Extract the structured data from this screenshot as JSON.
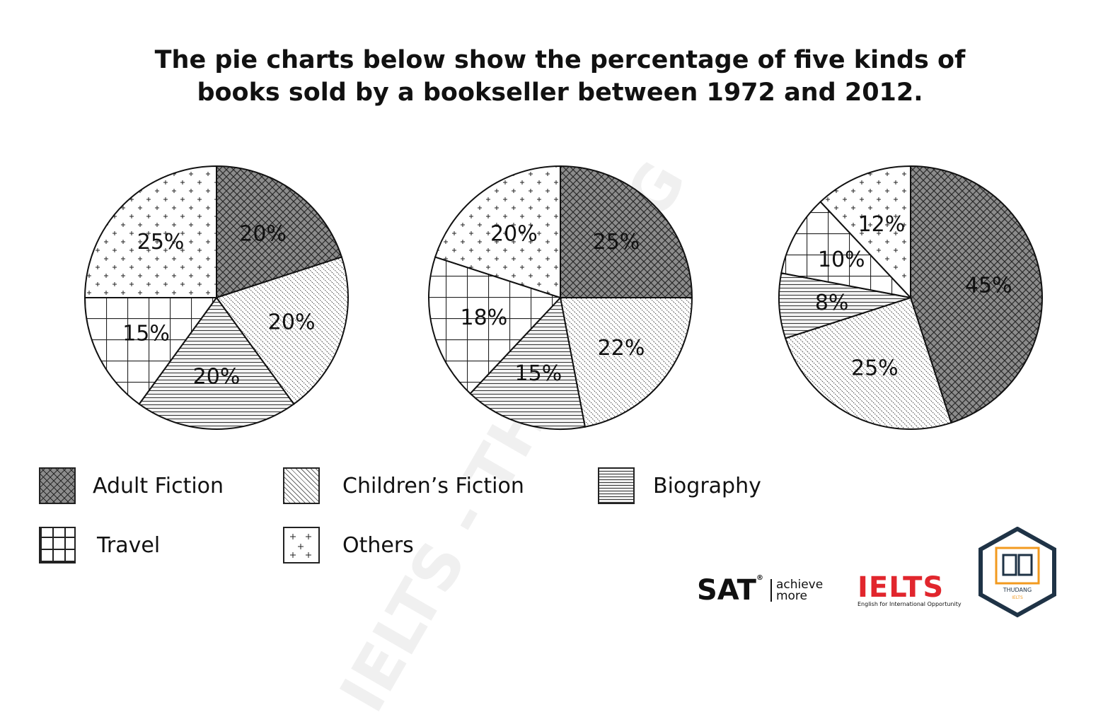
{
  "title_line1": "The pie charts below show the percentage of five kinds of",
  "title_line2": "books sold by a bookseller between 1972 and 2012.",
  "watermark": "IELTS - THU ĐẶNG",
  "logos": {
    "sat": "SAT",
    "sat_reg": "®",
    "sat_tagline_1": "achieve",
    "sat_tagline_2": "more",
    "ielts": "IELTS",
    "ielts_tagline": "English for International Opportunity",
    "badge_text": "THUDANG",
    "badge_sub": "IELTS"
  },
  "legend": [
    {
      "label": "Adult Fiction",
      "pattern": "crosshatch-dark"
    },
    {
      "label": "Children’s Fiction",
      "pattern": "diagonal-dots"
    },
    {
      "label": "Biography",
      "pattern": "horizontal-lines"
    },
    {
      "label": "Travel",
      "pattern": "grid"
    },
    {
      "label": "Others",
      "pattern": "plus-dots"
    }
  ],
  "chart_data": [
    {
      "type": "pie",
      "categories": [
        "Adult Fiction",
        "Children’s Fiction",
        "Biography",
        "Travel",
        "Others"
      ],
      "values": [
        20,
        20,
        20,
        15,
        25
      ],
      "labels": [
        "20%",
        "20%",
        "20%",
        "15%",
        "25%"
      ]
    },
    {
      "type": "pie",
      "categories": [
        "Adult Fiction",
        "Children’s Fiction",
        "Biography",
        "Travel",
        "Others"
      ],
      "values": [
        25,
        22,
        15,
        18,
        20
      ],
      "labels": [
        "25%",
        "22%",
        "15%",
        "18%",
        "20%"
      ]
    },
    {
      "type": "pie",
      "categories": [
        "Adult Fiction",
        "Children’s Fiction",
        "Biography",
        "Travel",
        "Others"
      ],
      "values": [
        45,
        25,
        8,
        10,
        12
      ],
      "labels": [
        "45%",
        "25%",
        "8%",
        "10%",
        "12%"
      ]
    }
  ]
}
